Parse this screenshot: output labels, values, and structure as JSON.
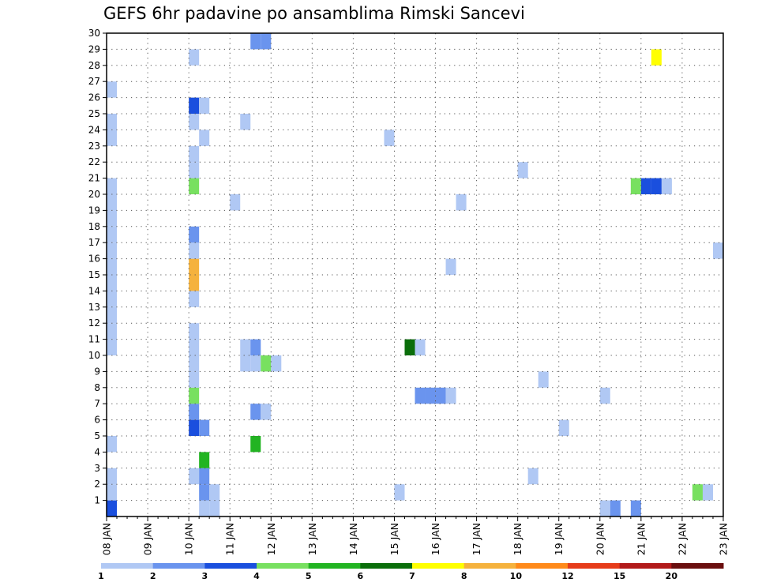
{
  "chart_data": {
    "type": "heatmap",
    "title": "GEFS 6hr padavine po ansamblima Rimski Sancevi",
    "x_tick_labels": [
      "08 JAN",
      "09 JAN",
      "10 JAN",
      "11 JAN",
      "12 JAN",
      "13 JAN",
      "14 JAN",
      "15 JAN",
      "16 JAN",
      "17 JAN",
      "18 JAN",
      "19 JAN",
      "20 JAN",
      "21 JAN",
      "22 JAN",
      "23 JAN"
    ],
    "x_range_steps": [
      0,
      60
    ],
    "steps_per_day": 4,
    "y_tick_labels": [
      "1",
      "2",
      "3",
      "4",
      "5",
      "6",
      "7",
      "8",
      "9",
      "10",
      "11",
      "12",
      "13",
      "14",
      "15",
      "16",
      "17",
      "18",
      "19",
      "20",
      "21",
      "22",
      "23",
      "24",
      "25",
      "26",
      "27",
      "28",
      "29",
      "30"
    ],
    "y_range": [
      0,
      30
    ],
    "grid": true,
    "legend": "bottom",
    "colorbar": {
      "levels": [
        "1",
        "2",
        "3",
        "4",
        "5",
        "6",
        "7",
        "8",
        "10",
        "12",
        "15",
        "20"
      ],
      "colors": [
        "#b0c8f4",
        "#6a94ee",
        "#1a4fde",
        "#78e060",
        "#22b422",
        "#0a6e0a",
        "#ffff00",
        "#f5b23d",
        "#ff8a1a",
        "#e63c1a",
        "#b21a1a",
        "#6a0e0e"
      ]
    },
    "cells": [
      {
        "step": 0,
        "member": 0,
        "level": 2
      },
      {
        "step": 0,
        "member": 1,
        "level": 0
      },
      {
        "step": 0,
        "member": 2,
        "level": 0
      },
      {
        "step": 0,
        "member": 4,
        "level": 0
      },
      {
        "step": 0,
        "member": 10,
        "level": 0
      },
      {
        "step": 0,
        "member": 11,
        "level": 0
      },
      {
        "step": 0,
        "member": 12,
        "level": 0
      },
      {
        "step": 0,
        "member": 13,
        "level": 0
      },
      {
        "step": 0,
        "member": 14,
        "level": 0
      },
      {
        "step": 0,
        "member": 15,
        "level": 0
      },
      {
        "step": 0,
        "member": 16,
        "level": 0
      },
      {
        "step": 0,
        "member": 17,
        "level": 0
      },
      {
        "step": 0,
        "member": 18,
        "level": 0
      },
      {
        "step": 0,
        "member": 19,
        "level": 0
      },
      {
        "step": 0,
        "member": 20,
        "level": 0
      },
      {
        "step": 0,
        "member": 23,
        "level": 0
      },
      {
        "step": 0,
        "member": 24,
        "level": 0
      },
      {
        "step": 0,
        "member": 26,
        "level": 0
      },
      {
        "step": 8,
        "member": 2,
        "level": 0
      },
      {
        "step": 8,
        "member": 5,
        "level": 2
      },
      {
        "step": 8,
        "member": 6,
        "level": 1
      },
      {
        "step": 8,
        "member": 7,
        "level": 3
      },
      {
        "step": 8,
        "member": 8,
        "level": 0
      },
      {
        "step": 8,
        "member": 9,
        "level": 0
      },
      {
        "step": 8,
        "member": 10,
        "level": 0
      },
      {
        "step": 8,
        "member": 11,
        "level": 0
      },
      {
        "step": 8,
        "member": 13,
        "level": 0
      },
      {
        "step": 8,
        "member": 14,
        "level": 7
      },
      {
        "step": 8,
        "member": 15,
        "level": 7
      },
      {
        "step": 8,
        "member": 16,
        "level": 0
      },
      {
        "step": 8,
        "member": 17,
        "level": 1
      },
      {
        "step": 8,
        "member": 20,
        "level": 3
      },
      {
        "step": 8,
        "member": 21,
        "level": 0
      },
      {
        "step": 8,
        "member": 22,
        "level": 0
      },
      {
        "step": 8,
        "member": 24,
        "level": 0
      },
      {
        "step": 8,
        "member": 25,
        "level": 2
      },
      {
        "step": 8,
        "member": 28,
        "level": 0
      },
      {
        "step": 9,
        "member": 0,
        "level": 0
      },
      {
        "step": 9,
        "member": 1,
        "level": 1
      },
      {
        "step": 9,
        "member": 2,
        "level": 1
      },
      {
        "step": 9,
        "member": 3,
        "level": 4
      },
      {
        "step": 9,
        "member": 5,
        "level": 1
      },
      {
        "step": 9,
        "member": 23,
        "level": 0
      },
      {
        "step": 9,
        "member": 25,
        "level": 0
      },
      {
        "step": 10,
        "member": 0,
        "level": 0
      },
      {
        "step": 10,
        "member": 1,
        "level": 0
      },
      {
        "step": 12,
        "member": 19,
        "level": 0
      },
      {
        "step": 13,
        "member": 10,
        "level": 0
      },
      {
        "step": 13,
        "member": 9,
        "level": 0
      },
      {
        "step": 13,
        "member": 24,
        "level": 0
      },
      {
        "step": 14,
        "member": 10,
        "level": 1
      },
      {
        "step": 14,
        "member": 9,
        "level": 0
      },
      {
        "step": 14,
        "member": 6,
        "level": 1
      },
      {
        "step": 14,
        "member": 4,
        "level": 4
      },
      {
        "step": 14,
        "member": 29,
        "level": 1
      },
      {
        "step": 15,
        "member": 9,
        "level": 3
      },
      {
        "step": 15,
        "member": 6,
        "level": 0
      },
      {
        "step": 15,
        "member": 29,
        "level": 1
      },
      {
        "step": 16,
        "member": 9,
        "level": 0
      },
      {
        "step": 27,
        "member": 23,
        "level": 0
      },
      {
        "step": 28,
        "member": 1,
        "level": 0
      },
      {
        "step": 29,
        "member": 10,
        "level": 5
      },
      {
        "step": 30,
        "member": 10,
        "level": 0
      },
      {
        "step": 30,
        "member": 7,
        "level": 1
      },
      {
        "step": 31,
        "member": 7,
        "level": 1
      },
      {
        "step": 32,
        "member": 7,
        "level": 1
      },
      {
        "step": 33,
        "member": 7,
        "level": 0
      },
      {
        "step": 33,
        "member": 15,
        "level": 0
      },
      {
        "step": 34,
        "member": 19,
        "level": 0
      },
      {
        "step": 40,
        "member": 21,
        "level": 0
      },
      {
        "step": 41,
        "member": 2,
        "level": 0
      },
      {
        "step": 42,
        "member": 8,
        "level": 0
      },
      {
        "step": 44,
        "member": 5,
        "level": 0
      },
      {
        "step": 48,
        "member": 7,
        "level": 0
      },
      {
        "step": 48,
        "member": 0,
        "level": 0
      },
      {
        "step": 49,
        "member": 0,
        "level": 1
      },
      {
        "step": 51,
        "member": 0,
        "level": 1
      },
      {
        "step": 51,
        "member": 20,
        "level": 3
      },
      {
        "step": 52,
        "member": 20,
        "level": 2
      },
      {
        "step": 53,
        "member": 20,
        "level": 2
      },
      {
        "step": 53,
        "member": 28,
        "level": 6
      },
      {
        "step": 54,
        "member": 20,
        "level": 0
      },
      {
        "step": 57,
        "member": 1,
        "level": 3
      },
      {
        "step": 58,
        "member": 1,
        "level": 0
      },
      {
        "step": 59,
        "member": 16,
        "level": 0
      }
    ]
  }
}
